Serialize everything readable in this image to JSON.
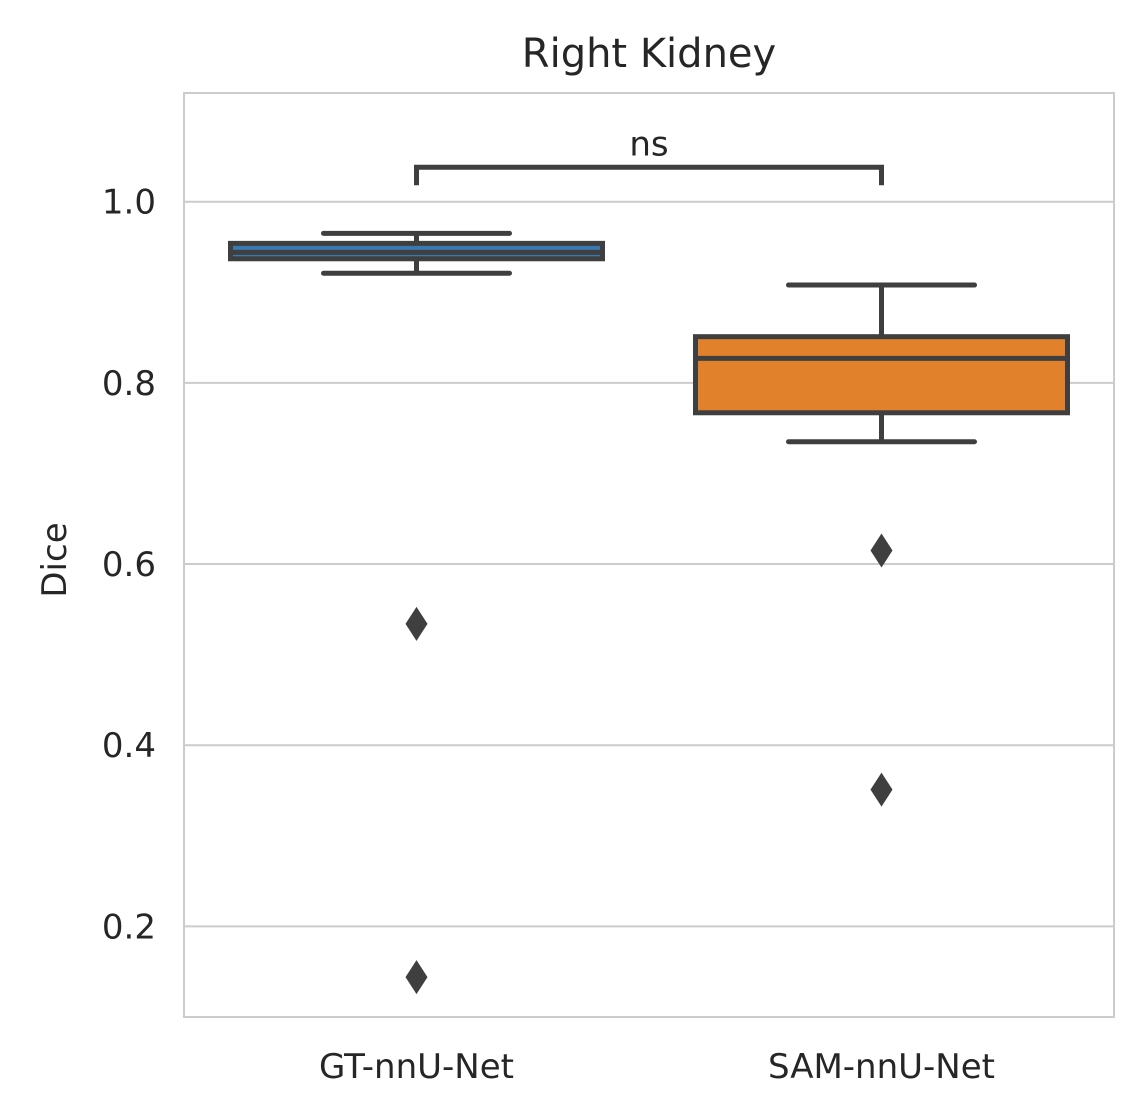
{
  "chart_data": {
    "type": "box",
    "title": "Right Kidney",
    "xlabel": "",
    "ylabel": "Dice",
    "ylim": [
      0.1,
      1.12
    ],
    "yticks": [
      0.2,
      0.4,
      0.6,
      0.8,
      1.0
    ],
    "ytick_labels": [
      "0.2",
      "0.4",
      "0.6",
      "0.8",
      "1.0"
    ],
    "grid": "horizontal",
    "categories": [
      "GT-nnU-Net",
      "SAM-nnU-Net"
    ],
    "boxes": [
      {
        "category": "GT-nnU-Net",
        "whisker_low": 0.921,
        "q1": 0.937,
        "median": 0.944,
        "q3": 0.954,
        "whisker_high": 0.965,
        "outliers": [
          0.534,
          0.144
        ],
        "color": "#3a78b0"
      },
      {
        "category": "SAM-nnU-Net",
        "whisker_low": 0.735,
        "q1": 0.767,
        "median": 0.827,
        "q3": 0.851,
        "whisker_high": 0.908,
        "outliers": [
          0.615,
          0.351
        ],
        "color": "#e1812c"
      }
    ],
    "annotation": {
      "text": "ns",
      "between": [
        "GT-nnU-Net",
        "SAM-nnU-Net"
      ],
      "y": 1.038
    },
    "colors": {
      "grid": "#cccccc",
      "frame": "#cccccc",
      "lines": "#3f3f3f",
      "text": "#262626"
    }
  }
}
